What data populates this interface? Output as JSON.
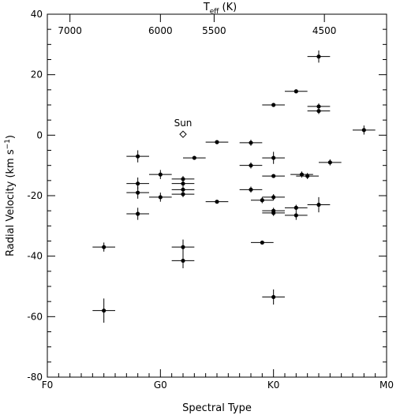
{
  "chart_data": {
    "type": "scatter",
    "xlabel": "Spectral Type",
    "ylabel_main": "Radial Velocity (km s",
    "ylabel_sup": "−1",
    "ylabel_close": ")",
    "top_label_main": "T",
    "top_label_sub": "eff",
    "top_label_unit": "(K)",
    "ylim": [
      -80,
      40
    ],
    "xlim": [
      0,
      30
    ],
    "x_ticks": [
      {
        "x": 0,
        "label": "F0"
      },
      {
        "x": 10,
        "label": "G0"
      },
      {
        "x": 20,
        "label": "K0"
      },
      {
        "x": 30,
        "label": "M0"
      }
    ],
    "y_ticks": [
      -80,
      -60,
      -40,
      -20,
      0,
      20,
      40
    ],
    "top_ticks": [
      {
        "x": 2.0,
        "label": "7000"
      },
      {
        "x": 10.0,
        "label": "6000"
      },
      {
        "x": 14.75,
        "label": "5500"
      },
      {
        "x": 24.5,
        "label": "4500"
      }
    ],
    "sun": {
      "x": 12.0,
      "y": 0.3,
      "label": "Sun"
    },
    "points": [
      {
        "x": 5.0,
        "y": -37.0,
        "xerr": 1.0,
        "yerr": 1.5
      },
      {
        "x": 5.0,
        "y": -58.0,
        "xerr": 1.0,
        "yerr": 4.0
      },
      {
        "x": 8.0,
        "y": -7.0,
        "xerr": 1.0,
        "yerr": 2.0
      },
      {
        "x": 8.0,
        "y": -16.0,
        "xerr": 1.0,
        "yerr": 2.0
      },
      {
        "x": 8.0,
        "y": -19.0,
        "xerr": 1.0,
        "yerr": 2.0
      },
      {
        "x": 8.0,
        "y": -26.0,
        "xerr": 1.0,
        "yerr": 2.0
      },
      {
        "x": 10.0,
        "y": -13.0,
        "xerr": 1.0,
        "yerr": 1.5
      },
      {
        "x": 10.0,
        "y": -20.5,
        "xerr": 1.0,
        "yerr": 1.5
      },
      {
        "x": 12.0,
        "y": -14.5,
        "xerr": 1.0,
        "yerr": 1.0
      },
      {
        "x": 12.0,
        "y": -16.0,
        "xerr": 1.0,
        "yerr": 1.0
      },
      {
        "x": 12.0,
        "y": -18.0,
        "xerr": 1.0,
        "yerr": 1.0
      },
      {
        "x": 12.0,
        "y": -19.5,
        "xerr": 1.0,
        "yerr": 1.0
      },
      {
        "x": 12.0,
        "y": -37.0,
        "xerr": 1.0,
        "yerr": 2.5
      },
      {
        "x": 12.0,
        "y": -41.5,
        "xerr": 1.0,
        "yerr": 2.5
      },
      {
        "x": 13.0,
        "y": -7.5,
        "xerr": 1.0,
        "yerr": 0.5
      },
      {
        "x": 15.0,
        "y": -2.3,
        "xerr": 1.0,
        "yerr": 0.5
      },
      {
        "x": 15.0,
        "y": -22.0,
        "xerr": 1.0,
        "yerr": 0.5
      },
      {
        "x": 18.0,
        "y": -2.5,
        "xerr": 1.0,
        "yerr": 1.0
      },
      {
        "x": 18.0,
        "y": -10.0,
        "xerr": 1.0,
        "yerr": 1.0
      },
      {
        "x": 18.0,
        "y": -18.0,
        "xerr": 1.0,
        "yerr": 1.0
      },
      {
        "x": 19.0,
        "y": -21.5,
        "xerr": 1.0,
        "yerr": 1.0
      },
      {
        "x": 19.0,
        "y": -35.5,
        "xerr": 1.0,
        "yerr": 0.5
      },
      {
        "x": 20.0,
        "y": 10.0,
        "xerr": 1.0,
        "yerr": 0.5
      },
      {
        "x": 20.0,
        "y": -7.5,
        "xerr": 1.0,
        "yerr": 2.0
      },
      {
        "x": 20.0,
        "y": -13.5,
        "xerr": 1.0,
        "yerr": 0.5
      },
      {
        "x": 20.0,
        "y": -20.5,
        "xerr": 1.0,
        "yerr": 1.0
      },
      {
        "x": 20.0,
        "y": -25.0,
        "xerr": 1.0,
        "yerr": 1.0
      },
      {
        "x": 20.0,
        "y": -25.7,
        "xerr": 1.0,
        "yerr": 1.0
      },
      {
        "x": 20.0,
        "y": -53.5,
        "xerr": 1.0,
        "yerr": 2.5
      },
      {
        "x": 22.0,
        "y": 14.5,
        "xerr": 1.0,
        "yerr": 0.5
      },
      {
        "x": 22.0,
        "y": -24.0,
        "xerr": 1.0,
        "yerr": 1.0
      },
      {
        "x": 22.0,
        "y": -26.5,
        "xerr": 1.0,
        "yerr": 1.5
      },
      {
        "x": 22.5,
        "y": -13.0,
        "xerr": 1.0,
        "yerr": 1.0
      },
      {
        "x": 23.0,
        "y": -13.5,
        "xerr": 1.0,
        "yerr": 1.0
      },
      {
        "x": 24.0,
        "y": 26.0,
        "xerr": 1.0,
        "yerr": 2.0
      },
      {
        "x": 24.0,
        "y": 9.5,
        "xerr": 1.0,
        "yerr": 1.0
      },
      {
        "x": 24.0,
        "y": 8.0,
        "xerr": 1.0,
        "yerr": 1.0
      },
      {
        "x": 24.0,
        "y": -23.0,
        "xerr": 1.0,
        "yerr": 2.5
      },
      {
        "x": 25.0,
        "y": -9.0,
        "xerr": 1.0,
        "yerr": 1.0
      },
      {
        "x": 28.0,
        "y": 1.7,
        "xerr": 1.0,
        "yerr": 1.5
      }
    ]
  }
}
